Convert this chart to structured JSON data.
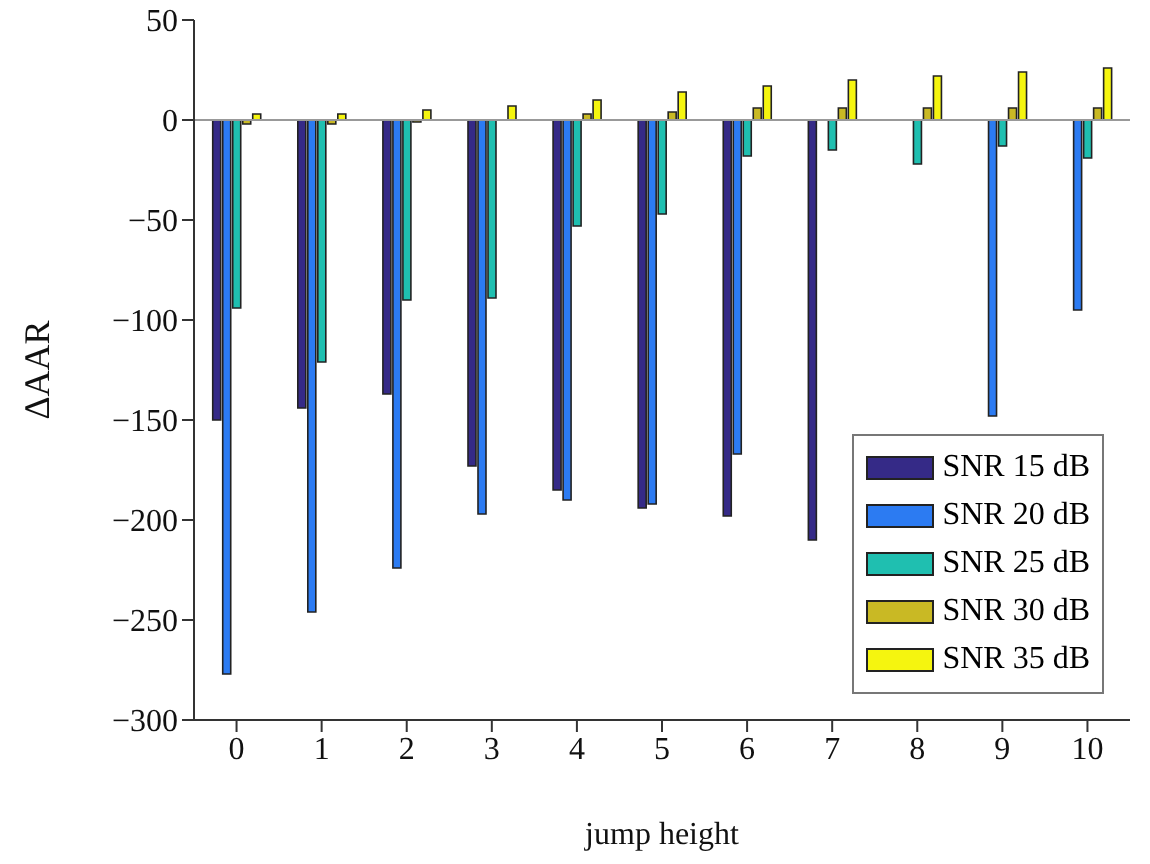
{
  "chart_data": {
    "type": "bar",
    "xlabel": "jump height",
    "ylabel": "ΔAAR",
    "categories": [
      "0",
      "1",
      "2",
      "3",
      "4",
      "5",
      "6",
      "7",
      "8",
      "9",
      "10"
    ],
    "series": [
      {
        "name": "SNR 15 dB",
        "color": "#352a87",
        "values": [
          -150,
          -144,
          -137,
          -173,
          -185,
          -194,
          -198,
          -210,
          null,
          null,
          null
        ]
      },
      {
        "name": "SNR 20 dB",
        "color": "#2c7bf2",
        "values": [
          -277,
          -246,
          -224,
          -197,
          -190,
          -192,
          -167,
          null,
          null,
          -148,
          -95
        ]
      },
      {
        "name": "SNR 25 dB",
        "color": "#1fbfb0",
        "values": [
          -94,
          -121,
          -90,
          -89,
          -53,
          -47,
          -18,
          -15,
          -22,
          -13,
          -19
        ]
      },
      {
        "name": "SNR 30 dB",
        "color": "#c9b924",
        "values": [
          -2,
          -2,
          -1,
          0,
          3,
          4,
          6,
          6,
          6,
          6,
          6
        ]
      },
      {
        "name": "SNR 35 dB",
        "color": "#f5f50f",
        "values": [
          3,
          3,
          5,
          7,
          10,
          14,
          17,
          20,
          22,
          24,
          26
        ]
      }
    ],
    "ylim": [
      -300,
      50
    ],
    "yticks": [
      50,
      0,
      -50,
      -100,
      -150,
      -200,
      -250,
      -300
    ],
    "ref_lines": [
      {
        "axis": "y",
        "value": 0,
        "color": "#999999"
      }
    ],
    "grid": false,
    "legend": "bottom right"
  }
}
